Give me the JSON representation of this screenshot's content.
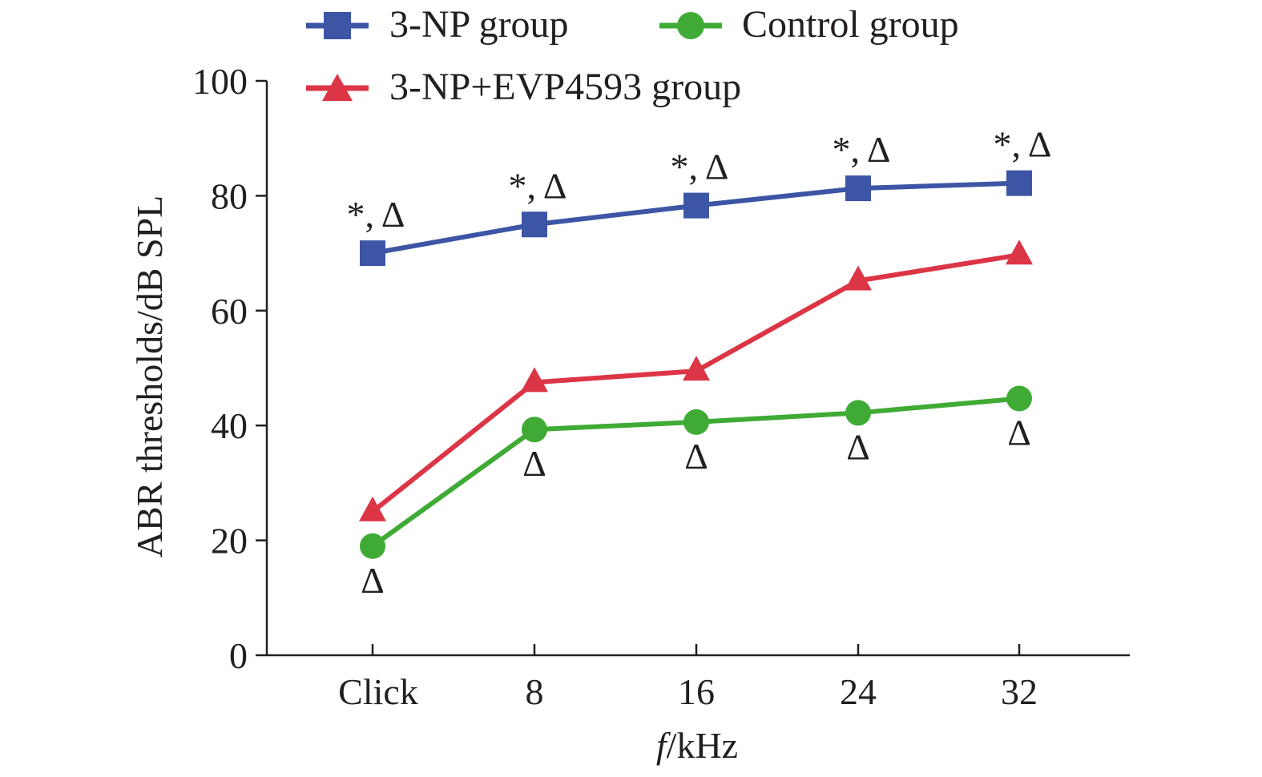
{
  "chart_data": {
    "type": "line",
    "categories": [
      "Click",
      "8",
      "16",
      "24",
      "32"
    ],
    "xlabel_italic": "f",
    "xlabel_rest": "/kHz",
    "ylabel": "ABR thresholds/dB SPL",
    "ylim": [
      0,
      100
    ],
    "yticks": [
      "0",
      "20",
      "40",
      "60",
      "80",
      "100"
    ],
    "grid": false,
    "legend_position": "top",
    "series": [
      {
        "name": "3-NP group",
        "marker": "square",
        "color": "#3c55a5",
        "values": [
          70,
          75,
          78.3,
          81.3,
          82.2
        ],
        "annotations": [
          "*, Δ",
          "*, Δ",
          "*, Δ",
          "*, Δ",
          "*, Δ"
        ]
      },
      {
        "name": "Control group",
        "marker": "circle",
        "color": "#3fab35",
        "values": [
          19,
          39.3,
          40.6,
          42.2,
          44.7
        ],
        "annotations": [
          "Δ",
          "Δ",
          "Δ",
          "Δ",
          "Δ"
        ]
      },
      {
        "name": "3-NP+EVP4593 group",
        "marker": "triangle",
        "color": "#dc3545",
        "values": [
          25,
          47.5,
          49.5,
          65.2,
          69.7
        ],
        "annotations": []
      }
    ]
  }
}
